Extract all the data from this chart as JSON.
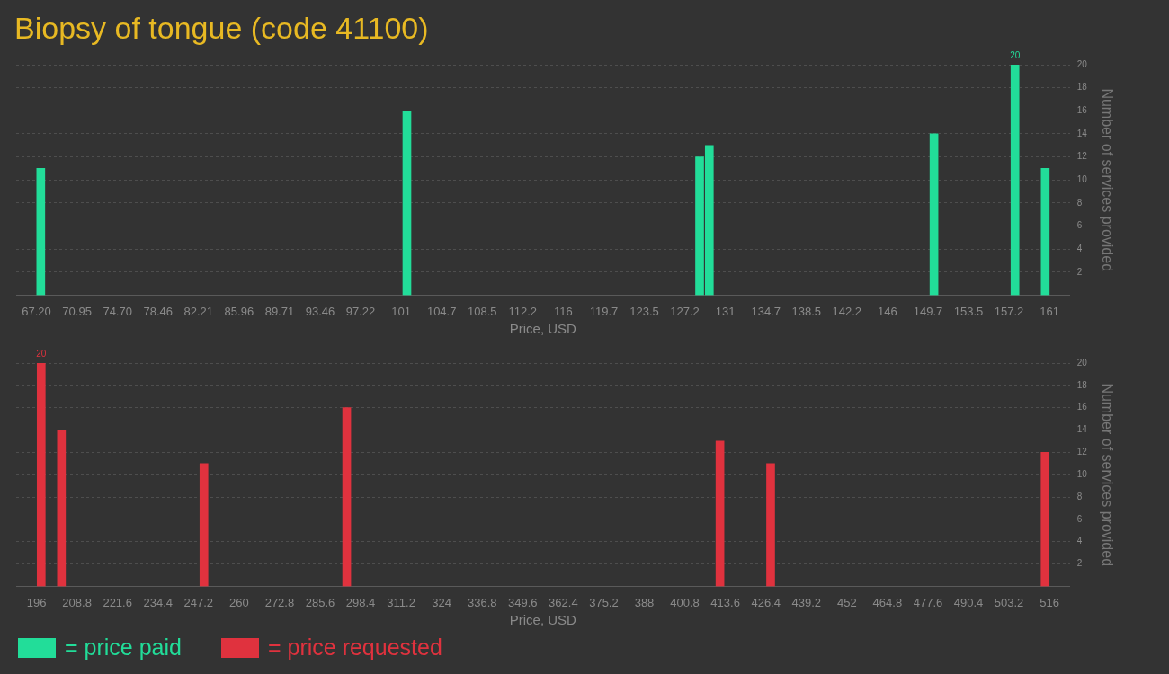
{
  "chart_data": [
    {
      "type": "bar",
      "title": "Biopsy of tongue (code 41100)",
      "xlabel": "Price, USD",
      "ylabel": "Number of services provided",
      "x": [
        67.6,
        101.5,
        128.6,
        129.5,
        150.3,
        157.8,
        160.6
      ],
      "series": [
        {
          "name": "= price paid",
          "color": "#22dd99",
          "values": [
            11,
            16,
            12,
            13,
            14,
            20,
            11
          ],
          "value_labels": [
            null,
            null,
            null,
            null,
            null,
            "20",
            null
          ]
        }
      ],
      "xlim": [
        67.2,
        161
      ],
      "xticks": [
        {
          "value": 67.2,
          "label": "67.20"
        },
        {
          "value": 70.952,
          "label": "70.95"
        },
        {
          "value": 74.704,
          "label": "74.70"
        },
        {
          "value": 78.456,
          "label": "78.46"
        },
        {
          "value": 82.208,
          "label": "82.21"
        },
        {
          "value": 85.96,
          "label": "85.96"
        },
        {
          "value": 89.712,
          "label": "89.71"
        },
        {
          "value": 93.464,
          "label": "93.46"
        },
        {
          "value": 97.216,
          "label": "97.22"
        },
        {
          "value": 100.968,
          "label": "101"
        },
        {
          "value": 104.72,
          "label": "104.7"
        },
        {
          "value": 108.472,
          "label": "108.5"
        },
        {
          "value": 112.224,
          "label": "112.2"
        },
        {
          "value": 115.976,
          "label": "116"
        },
        {
          "value": 119.728,
          "label": "119.7"
        },
        {
          "value": 123.48,
          "label": "123.5"
        },
        {
          "value": 127.232,
          "label": "127.2"
        },
        {
          "value": 130.984,
          "label": "131"
        },
        {
          "value": 134.736,
          "label": "134.7"
        },
        {
          "value": 138.488,
          "label": "138.5"
        },
        {
          "value": 142.24,
          "label": "142.2"
        },
        {
          "value": 145.992,
          "label": "146"
        },
        {
          "value": 149.744,
          "label": "149.7"
        },
        {
          "value": 153.496,
          "label": "153.5"
        },
        {
          "value": 157.248,
          "label": "157.2"
        },
        {
          "value": 161,
          "label": "161"
        }
      ],
      "ylim": [
        0,
        20
      ],
      "yticks": [
        2,
        4,
        6,
        8,
        10,
        12,
        14,
        16,
        18,
        20
      ],
      "grid": "y",
      "legend": "bottom"
    },
    {
      "type": "bar",
      "xlabel": "Price, USD",
      "ylabel": "Number of services provided",
      "x": [
        197.5,
        203.9,
        248.9,
        294,
        411.9,
        427.9,
        514.6
      ],
      "series": [
        {
          "name": "= price requested",
          "color": "#e0323e",
          "values": [
            20,
            14,
            11,
            16,
            13,
            11,
            12
          ],
          "value_labels": [
            "20",
            null,
            null,
            null,
            null,
            null,
            null
          ]
        }
      ],
      "xlim": [
        196,
        516
      ],
      "xticks": [
        196,
        208.8,
        221.6,
        234.4,
        247.2,
        260,
        272.8,
        285.6,
        298.4,
        311.2,
        324,
        336.8,
        349.6,
        362.4,
        375.2,
        388,
        400.8,
        413.6,
        426.4,
        439.2,
        452,
        464.8,
        477.6,
        490.4,
        503.2,
        516
      ],
      "ylim": [
        0,
        20
      ],
      "yticks": [
        2,
        4,
        6,
        8,
        10,
        12,
        14,
        16,
        18,
        20
      ],
      "grid": "y",
      "legend": "bottom"
    }
  ]
}
